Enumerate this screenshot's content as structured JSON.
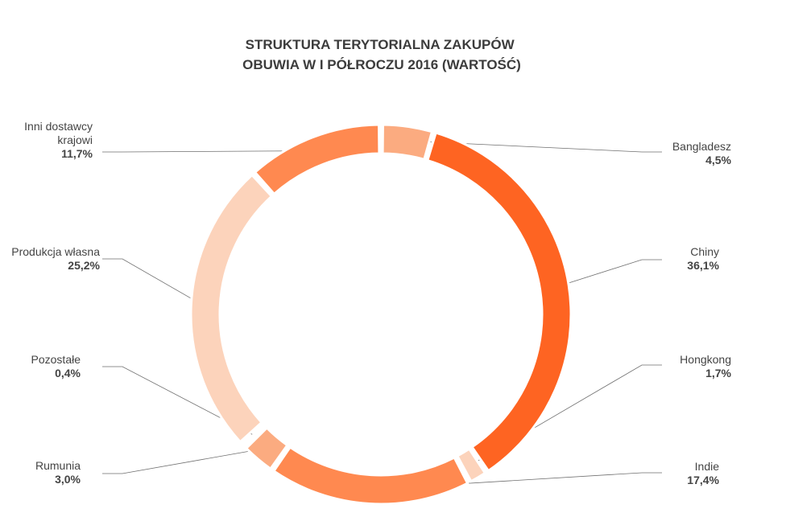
{
  "chart_data": {
    "type": "pie",
    "title_lines": [
      "STRUKTURA TERYTORIALNA ZAKUPÓW",
      "OBUWIA W I PÓŁROCZU 2016 (WARTOŚĆ)"
    ],
    "slices": [
      {
        "key": "bangladesz",
        "label_lines": [
          "Bangladesz"
        ],
        "value": 4.5,
        "value_label": "4,5%",
        "color": "#fbab80"
      },
      {
        "key": "chiny",
        "label_lines": [
          "Chiny"
        ],
        "value": 36.1,
        "value_label": "36,1%",
        "color": "#fe6422"
      },
      {
        "key": "hongkong",
        "label_lines": [
          "Hongkong"
        ],
        "value": 1.7,
        "value_label": "1,7%",
        "color": "#fcd3bb"
      },
      {
        "key": "indie",
        "label_lines": [
          "Indie"
        ],
        "value": 17.4,
        "value_label": "17,4%",
        "color": "#ff8950"
      },
      {
        "key": "rumunia",
        "label_lines": [
          "Rumunia"
        ],
        "value": 3.0,
        "value_label": "3,0%",
        "color": "#fbab80"
      },
      {
        "key": "pozostale",
        "label_lines": [
          "Pozostałe"
        ],
        "value": 0.4,
        "value_label": "0,4%",
        "color": "#f4655a"
      },
      {
        "key": "produkcja-wlasna",
        "label_lines": [
          "Produkcja własna"
        ],
        "value": 25.2,
        "value_label": "25,2%",
        "color": "#fcd3bb"
      },
      {
        "key": "inni-dostawcy-krajowi",
        "label_lines": [
          "Inni dostawcy",
          "krajowi"
        ],
        "value": 11.7,
        "value_label": "11,7%",
        "color": "#ff8950"
      }
    ]
  }
}
